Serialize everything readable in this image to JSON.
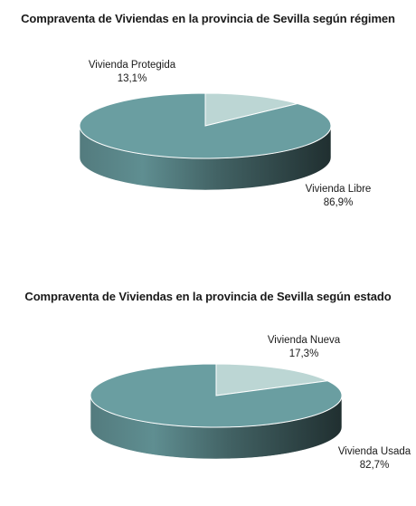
{
  "colors": {
    "main": "#6a9ea1",
    "minor": "#bcd6d4",
    "edge": "#ffffff"
  },
  "chart_data": [
    {
      "type": "pie",
      "title": "Compraventa de Viviendas en la provincia de Sevilla según régimen",
      "slices": [
        {
          "name": "Vivienda Libre",
          "value": 86.9,
          "label": "86,9%"
        },
        {
          "name": "Vivienda Protegida",
          "value": 13.1,
          "label": "13,1%"
        }
      ]
    },
    {
      "type": "pie",
      "title": "Compraventa de Viviendas en la provincia de Sevilla según estado",
      "slices": [
        {
          "name": "Vivienda Usada",
          "value": 82.7,
          "label": "82,7%"
        },
        {
          "name": "Vivienda Nueva",
          "value": 17.3,
          "label": "17,3%"
        }
      ]
    }
  ]
}
